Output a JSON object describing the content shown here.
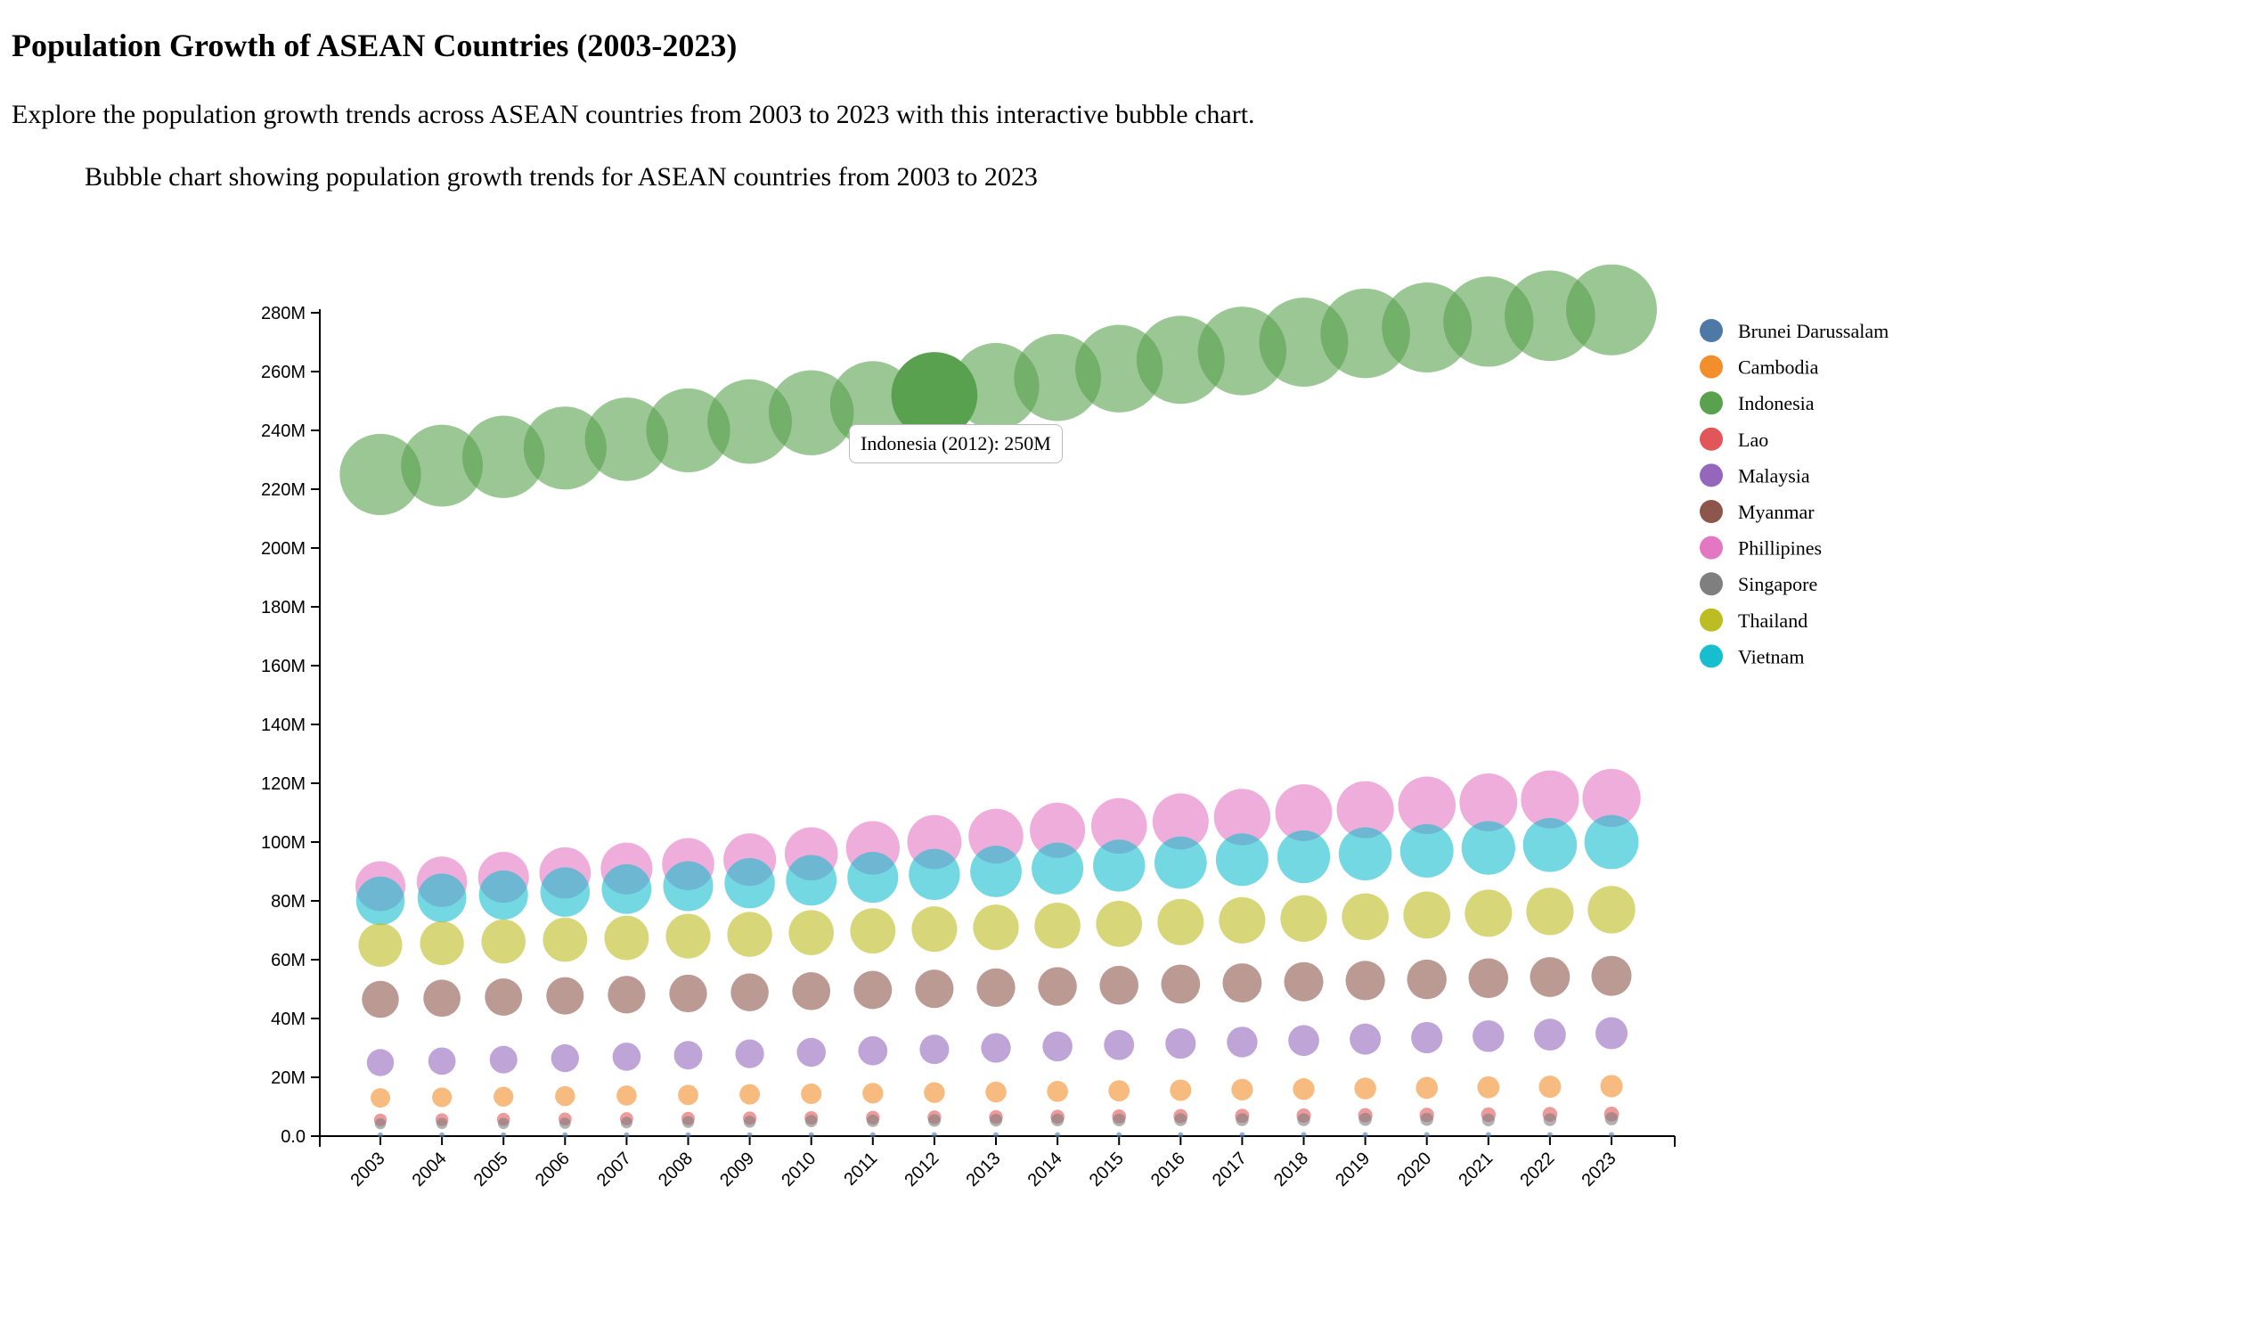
{
  "page": {
    "title": "Population Growth of ASEAN Countries (2003-2023)",
    "intro": "Explore the population growth trends across ASEAN countries from 2003 to 2023 with this interactive bubble chart.",
    "caption": "Bubble chart showing population growth trends for ASEAN countries from 2003 to 2023"
  },
  "tooltip": {
    "text": "Indonesia (2012): 250M",
    "series": "Indonesia",
    "year": "2012"
  },
  "chart_data": {
    "type": "scatter",
    "subtype": "bubble",
    "x": [
      "2003",
      "2004",
      "2005",
      "2006",
      "2007",
      "2008",
      "2009",
      "2010",
      "2011",
      "2012",
      "2013",
      "2014",
      "2015",
      "2016",
      "2017",
      "2018",
      "2019",
      "2020",
      "2021",
      "2022",
      "2023"
    ],
    "ylim": [
      0,
      280
    ],
    "y_unit": "M",
    "y_ticks": [
      "0.0",
      "20M",
      "40M",
      "60M",
      "80M",
      "100M",
      "120M",
      "140M",
      "160M",
      "180M",
      "200M",
      "220M",
      "240M",
      "260M",
      "280M"
    ],
    "legend_position": "right",
    "grid": false,
    "series": [
      {
        "name": "Brunei Darussalam",
        "color": "#4e79a7",
        "values": [
          0.36,
          0.37,
          0.37,
          0.38,
          0.38,
          0.39,
          0.39,
          0.4,
          0.4,
          0.41,
          0.41,
          0.42,
          0.42,
          0.43,
          0.43,
          0.44,
          0.44,
          0.44,
          0.45,
          0.45,
          0.45
        ]
      },
      {
        "name": "Cambodia",
        "color": "#f28e2c",
        "values": [
          13.0,
          13.2,
          13.4,
          13.6,
          13.8,
          14.0,
          14.2,
          14.4,
          14.6,
          14.8,
          15.0,
          15.2,
          15.4,
          15.6,
          15.8,
          16.0,
          16.2,
          16.4,
          16.6,
          16.8,
          17.0
        ]
      },
      {
        "name": "Indonesia",
        "color": "#59a14f",
        "values": [
          225.0,
          228.0,
          231.0,
          234.0,
          237.0,
          240.0,
          243.0,
          246.0,
          249.0,
          252.0,
          255.0,
          258.0,
          261.0,
          264.0,
          267.0,
          270.0,
          273.0,
          275.0,
          277.0,
          279.0,
          281.0
        ]
      },
      {
        "name": "Lao",
        "color": "#e15759",
        "values": [
          5.5,
          5.6,
          5.7,
          5.8,
          5.9,
          6.0,
          6.1,
          6.2,
          6.3,
          6.4,
          6.5,
          6.6,
          6.7,
          6.8,
          6.9,
          7.0,
          7.1,
          7.2,
          7.3,
          7.4,
          7.5
        ]
      },
      {
        "name": "Malaysia",
        "color": "#9467bd",
        "values": [
          25.0,
          25.5,
          26.0,
          26.5,
          27.0,
          27.5,
          28.0,
          28.5,
          29.0,
          29.5,
          30.0,
          30.5,
          31.0,
          31.5,
          32.0,
          32.5,
          33.0,
          33.5,
          34.0,
          34.5,
          35.0
        ]
      },
      {
        "name": "Myanmar",
        "color": "#8c564b",
        "values": [
          46.5,
          46.9,
          47.3,
          47.7,
          48.1,
          48.5,
          48.9,
          49.3,
          49.7,
          50.1,
          50.5,
          50.9,
          51.3,
          51.7,
          52.1,
          52.5,
          52.9,
          53.3,
          53.7,
          54.1,
          54.5
        ]
      },
      {
        "name": "Phillipines",
        "color": "#e377c2",
        "values": [
          85.0,
          86.5,
          88.0,
          89.5,
          91.0,
          92.5,
          94.0,
          96.0,
          98.0,
          100.0,
          102.0,
          104.0,
          105.5,
          107.0,
          108.5,
          110.0,
          111.0,
          112.5,
          113.5,
          114.5,
          115.0
        ]
      },
      {
        "name": "Singapore",
        "color": "#7f7f7f",
        "values": [
          4.2,
          4.3,
          4.3,
          4.4,
          4.6,
          4.8,
          4.9,
          5.1,
          5.2,
          5.3,
          5.4,
          5.5,
          5.5,
          5.6,
          5.6,
          5.6,
          5.7,
          5.7,
          5.5,
          5.6,
          5.9
        ]
      },
      {
        "name": "Thailand",
        "color": "#bcbd22",
        "values": [
          65.0,
          65.6,
          66.2,
          66.8,
          67.4,
          68.0,
          68.6,
          69.2,
          69.8,
          70.4,
          71.0,
          71.6,
          72.2,
          72.8,
          73.4,
          74.0,
          74.6,
          75.2,
          75.8,
          76.4,
          77.0
        ]
      },
      {
        "name": "Vietnam",
        "color": "#17becf",
        "values": [
          80.0,
          81.0,
          82.0,
          83.0,
          84.0,
          85.0,
          86.0,
          87.0,
          88.0,
          89.0,
          90.0,
          91.0,
          92.0,
          93.0,
          94.0,
          95.0,
          96.0,
          97.0,
          98.0,
          99.0,
          100.0
        ]
      }
    ]
  }
}
